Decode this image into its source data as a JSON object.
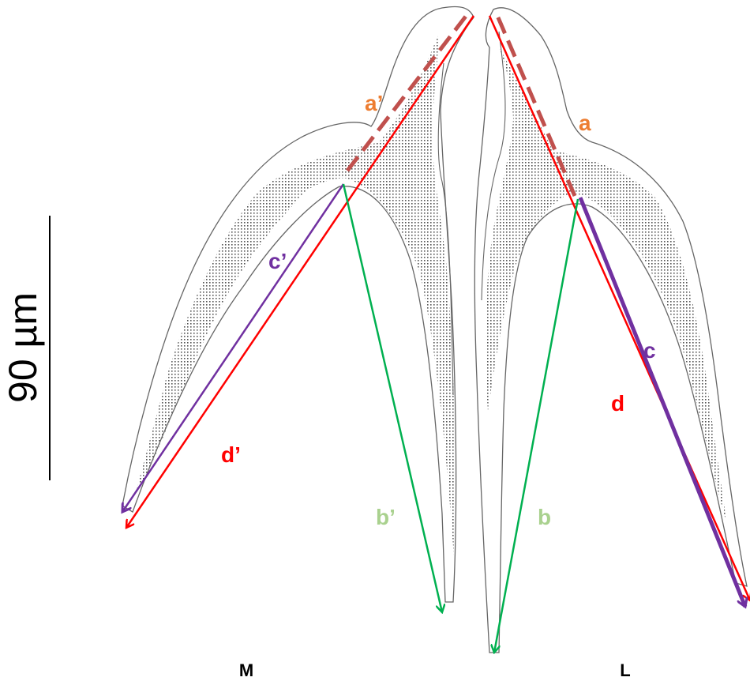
{
  "scale_bar": {
    "label": "90 µm"
  },
  "labels": {
    "a_prime": "a’",
    "a": "a",
    "b_prime": "b’",
    "b": "b",
    "c_prime": "c’",
    "c": "c",
    "d_prime": "d’",
    "d": "d"
  },
  "groups": {
    "medial": "M",
    "lateral": "L"
  }
}
